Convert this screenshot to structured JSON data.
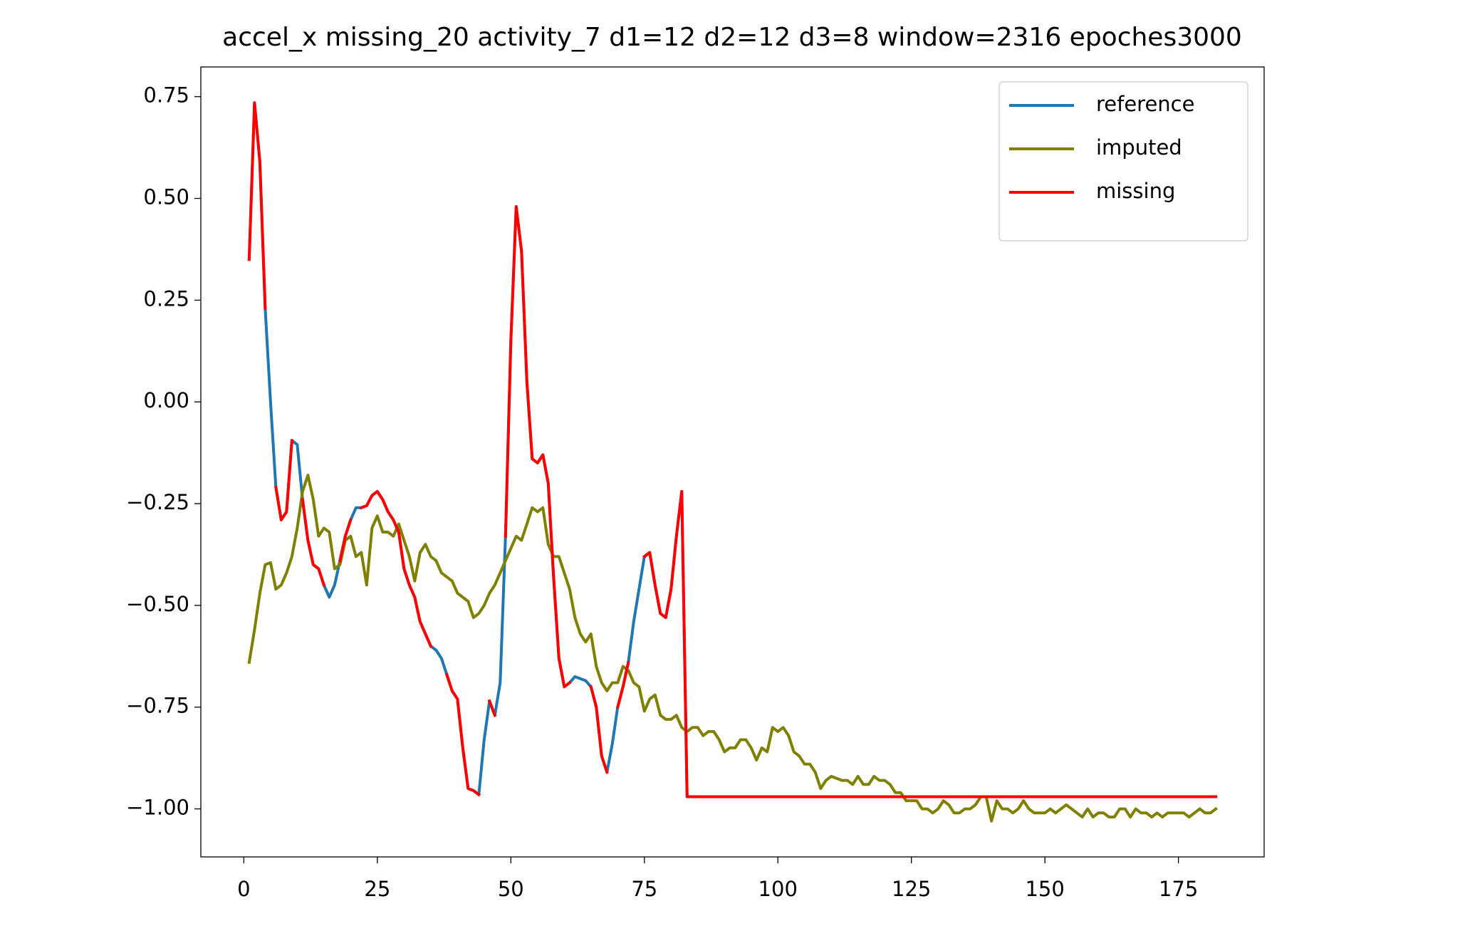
{
  "chart_data": {
    "type": "line",
    "title": "accel_x missing_20 activity_7 d1=12 d2=12 d3=8 window=2316 epoches3000",
    "x": [
      1,
      2,
      3,
      4,
      5,
      6,
      7,
      8,
      9,
      10,
      11,
      12,
      13,
      14,
      15,
      16,
      17,
      18,
      19,
      20,
      21,
      22,
      23,
      24,
      25,
      26,
      27,
      28,
      29,
      30,
      31,
      32,
      33,
      34,
      35,
      36,
      37,
      38,
      39,
      40,
      41,
      42,
      43,
      44,
      45,
      46,
      47,
      48,
      49,
      50,
      51,
      52,
      53,
      54,
      55,
      56,
      57,
      58,
      59,
      60,
      61,
      62,
      63,
      64,
      65,
      66,
      67,
      68,
      69,
      70,
      71,
      72,
      73,
      74,
      75,
      76,
      77,
      78,
      79,
      80,
      81,
      82,
      83,
      84,
      85,
      86,
      87,
      88,
      89,
      90,
      91,
      92,
      93,
      94,
      95,
      96,
      97,
      98,
      99,
      100,
      101,
      102,
      103,
      104,
      105,
      106,
      107,
      108,
      109,
      110,
      111,
      112,
      113,
      114,
      115,
      116,
      117,
      118,
      119,
      120,
      121,
      122,
      123,
      124,
      125,
      126,
      127,
      128,
      129,
      130,
      131,
      132,
      133,
      134,
      135,
      136,
      137,
      138,
      139,
      140,
      141,
      142,
      143,
      144,
      145,
      146,
      147,
      148,
      149,
      150,
      151,
      152,
      153,
      154,
      155,
      156,
      157,
      158,
      159,
      160,
      161,
      162,
      163,
      164,
      165,
      166,
      167,
      168,
      169,
      170,
      171,
      172,
      173,
      174,
      175,
      176,
      177,
      178,
      179,
      180,
      181,
      182
    ],
    "series": [
      {
        "name": "reference",
        "color": "#1f77b4",
        "values": [
          0.35,
          0.735,
          0.59,
          0.23,
          0.0,
          -0.21,
          -0.29,
          -0.27,
          -0.095,
          -0.105,
          -0.24,
          -0.34,
          -0.4,
          -0.41,
          -0.45,
          -0.48,
          -0.45,
          -0.39,
          -0.33,
          -0.29,
          -0.26,
          -0.26,
          -0.255,
          -0.23,
          -0.22,
          -0.24,
          -0.27,
          -0.29,
          -0.32,
          -0.41,
          -0.45,
          -0.48,
          -0.54,
          -0.57,
          -0.6,
          -0.61,
          -0.63,
          -0.67,
          -0.71,
          -0.73,
          -0.85,
          -0.95,
          -0.955,
          -0.965,
          -0.83,
          -0.735,
          -0.77,
          -0.69,
          -0.33,
          0.15,
          0.48,
          0.37,
          0.05,
          -0.14,
          -0.15,
          -0.13,
          -0.2,
          -0.43,
          -0.63,
          -0.7,
          -0.69,
          -0.675,
          -0.68,
          -0.685,
          -0.7,
          -0.75,
          -0.87,
          -0.91,
          -0.84,
          -0.75,
          -0.7,
          -0.64,
          -0.54,
          -0.46,
          -0.38,
          -0.37,
          -0.45,
          -0.52,
          -0.53,
          -0.46,
          -0.33,
          -0.22,
          -0.97,
          -0.97,
          -0.97,
          -0.97,
          -0.97,
          -0.97,
          -0.97,
          -0.97,
          -0.97,
          -0.97,
          -0.97,
          -0.97,
          -0.97,
          -0.97,
          -0.97,
          -0.97,
          -0.97,
          -0.97,
          -0.97,
          -0.97,
          -0.97,
          -0.97,
          -0.97,
          -0.97,
          -0.97,
          -0.97,
          -0.97,
          -0.97,
          -0.97,
          -0.97,
          -0.97,
          -0.97,
          -0.97,
          -0.97,
          -0.97,
          -0.97,
          -0.97,
          -0.97,
          -0.97,
          -0.97,
          -0.97,
          -0.97,
          -0.97,
          -0.97,
          -0.97,
          -0.97,
          -0.97,
          -0.97,
          -0.97,
          -0.97,
          -0.97,
          -0.97,
          -0.97,
          -0.97,
          -0.97,
          -0.97,
          -0.97,
          -0.97,
          -0.97,
          -0.97,
          -0.97,
          -0.97,
          -0.97,
          -0.97,
          -0.97,
          -0.97,
          -0.97,
          -0.97,
          -0.97,
          -0.97,
          -0.97,
          -0.97,
          -0.97,
          -0.97,
          -0.97,
          -0.97,
          -0.97,
          -0.97,
          -0.97,
          -0.97,
          -0.97,
          -0.97,
          -0.97,
          -0.97,
          -0.97,
          -0.97,
          -0.97,
          -0.97,
          -0.97,
          -0.97,
          -0.97,
          -0.97,
          -0.97,
          -0.97,
          -0.97,
          -0.97,
          -0.97,
          -0.97,
          -0.97,
          -0.97
        ]
      },
      {
        "name": "imputed",
        "color": "#808000",
        "values": [
          -0.64,
          -0.56,
          -0.47,
          -0.4,
          -0.395,
          -0.46,
          -0.45,
          -0.42,
          -0.38,
          -0.31,
          -0.22,
          -0.18,
          -0.24,
          -0.33,
          -0.31,
          -0.32,
          -0.41,
          -0.4,
          -0.34,
          -0.33,
          -0.38,
          -0.37,
          -0.45,
          -0.31,
          -0.28,
          -0.32,
          -0.32,
          -0.33,
          -0.3,
          -0.34,
          -0.38,
          -0.44,
          -0.37,
          -0.35,
          -0.38,
          -0.39,
          -0.42,
          -0.43,
          -0.44,
          -0.47,
          -0.48,
          -0.49,
          -0.53,
          -0.52,
          -0.5,
          -0.47,
          -0.45,
          -0.42,
          -0.39,
          -0.36,
          -0.33,
          -0.34,
          -0.3,
          -0.26,
          -0.27,
          -0.26,
          -0.35,
          -0.38,
          -0.38,
          -0.42,
          -0.46,
          -0.53,
          -0.57,
          -0.59,
          -0.57,
          -0.65,
          -0.69,
          -0.71,
          -0.69,
          -0.69,
          -0.65,
          -0.66,
          -0.69,
          -0.7,
          -0.76,
          -0.73,
          -0.72,
          -0.77,
          -0.78,
          -0.78,
          -0.77,
          -0.8,
          -0.81,
          -0.8,
          -0.8,
          -0.82,
          -0.81,
          -0.81,
          -0.83,
          -0.86,
          -0.85,
          -0.85,
          -0.83,
          -0.83,
          -0.85,
          -0.88,
          -0.85,
          -0.86,
          -0.8,
          -0.81,
          -0.8,
          -0.82,
          -0.86,
          -0.87,
          -0.89,
          -0.89,
          -0.91,
          -0.95,
          -0.93,
          -0.92,
          -0.925,
          -0.93,
          -0.93,
          -0.94,
          -0.92,
          -0.94,
          -0.94,
          -0.92,
          -0.93,
          -0.93,
          -0.94,
          -0.96,
          -0.96,
          -0.98,
          -0.98,
          -0.98,
          -1.0,
          -1.0,
          -1.01,
          -1.0,
          -0.98,
          -0.99,
          -1.01,
          -1.01,
          -1.0,
          -1.0,
          -0.99,
          -0.97,
          -0.97,
          -1.03,
          -0.98,
          -1.0,
          -1.0,
          -1.01,
          -1.0,
          -0.98,
          -1.0,
          -1.01,
          -1.01,
          -1.01,
          -1.0,
          -1.01,
          -1.0,
          -0.99,
          -1.0,
          -1.01,
          -1.02,
          -1.0,
          -1.02,
          -1.01,
          -1.01,
          -1.02,
          -1.02,
          -1.0,
          -1.0,
          -1.02,
          -1.0,
          -1.01,
          -1.01,
          -1.02,
          -1.01,
          -1.02,
          -1.01,
          -1.01,
          -1.01,
          -1.01,
          -1.02,
          -1.01,
          -1.0,
          -1.01,
          -1.01,
          -1.0
        ]
      },
      {
        "name": "missing",
        "color": "#ff0000",
        "values": [
          0.35,
          0.735,
          0.59,
          0.23,
          null,
          -0.21,
          -0.29,
          -0.27,
          -0.095,
          null,
          -0.24,
          -0.34,
          -0.4,
          -0.41,
          -0.45,
          null,
          null,
          -0.39,
          -0.33,
          -0.29,
          null,
          -0.26,
          -0.255,
          -0.23,
          -0.22,
          -0.24,
          -0.27,
          -0.29,
          -0.32,
          -0.41,
          -0.45,
          -0.48,
          -0.54,
          -0.57,
          -0.6,
          null,
          null,
          -0.67,
          -0.71,
          -0.73,
          -0.85,
          -0.95,
          -0.955,
          -0.965,
          null,
          -0.735,
          -0.77,
          null,
          -0.33,
          0.15,
          0.48,
          0.37,
          0.05,
          -0.14,
          -0.15,
          -0.13,
          -0.2,
          -0.43,
          -0.63,
          -0.7,
          -0.69,
          null,
          null,
          null,
          -0.7,
          -0.75,
          -0.87,
          -0.91,
          null,
          -0.75,
          -0.7,
          -0.64,
          null,
          null,
          -0.38,
          -0.37,
          -0.45,
          -0.52,
          -0.53,
          -0.46,
          -0.33,
          -0.22,
          -0.97,
          -0.97,
          -0.97,
          -0.97,
          -0.97,
          -0.97,
          -0.97,
          -0.97,
          -0.97,
          -0.97,
          -0.97,
          -0.97,
          -0.97,
          -0.97,
          -0.97,
          -0.97,
          -0.97,
          -0.97,
          -0.97,
          -0.97,
          -0.97,
          -0.97,
          -0.97,
          -0.97,
          -0.97,
          -0.97,
          -0.97,
          -0.97,
          -0.97,
          -0.97,
          -0.97,
          -0.97,
          -0.97,
          -0.97,
          -0.97,
          -0.97,
          -0.97,
          -0.97,
          -0.97,
          -0.97,
          -0.97,
          -0.97,
          -0.97,
          -0.97,
          -0.97,
          -0.97,
          -0.97,
          -0.97,
          -0.97,
          -0.97,
          -0.97,
          -0.97,
          -0.97,
          -0.97,
          -0.97,
          -0.97,
          -0.97,
          -0.97,
          -0.97,
          -0.97,
          -0.97,
          -0.97,
          -0.97,
          -0.97,
          -0.97,
          -0.97,
          -0.97,
          -0.97,
          -0.97,
          -0.97,
          -0.97,
          -0.97,
          -0.97,
          -0.97,
          -0.97,
          -0.97,
          -0.97,
          -0.97,
          -0.97,
          -0.97,
          -0.97,
          -0.97,
          -0.97,
          -0.97,
          -0.97,
          -0.97,
          -0.97,
          -0.97,
          -0.97,
          -0.97,
          -0.97,
          -0.97,
          -0.97,
          -0.97,
          -0.97,
          -0.97,
          -0.97,
          -0.97,
          -0.97,
          -0.97
        ]
      }
    ],
    "xlim": [
      -8.05,
      191.05
    ],
    "ylim": [
      -1.118,
      0.823
    ],
    "xticks": [
      0,
      25,
      50,
      75,
      100,
      125,
      150,
      175
    ],
    "yticks": [
      {
        "value": 0.75,
        "label": "0.75"
      },
      {
        "value": 0.5,
        "label": "0.50"
      },
      {
        "value": 0.25,
        "label": "0.25"
      },
      {
        "value": 0,
        "label": "0.00"
      },
      {
        "value": -0.25,
        "label": "−0.25"
      },
      {
        "value": -0.5,
        "label": "−0.50"
      },
      {
        "value": -0.75,
        "label": "−0.75"
      },
      {
        "value": -1,
        "label": "−1.00"
      }
    ],
    "grid": false,
    "legend": "upper right"
  }
}
